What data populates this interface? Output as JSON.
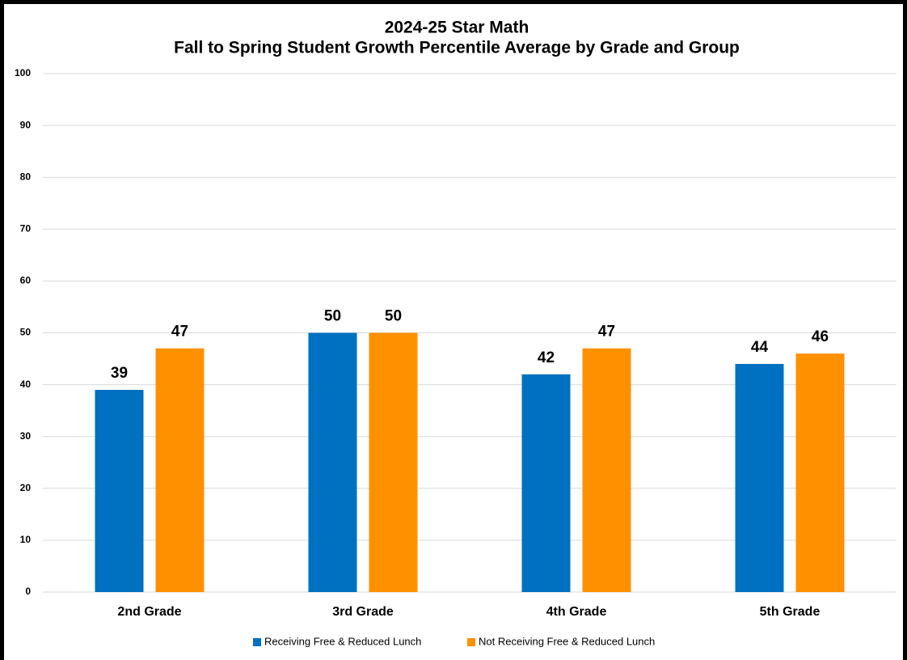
{
  "chart_data": {
    "type": "bar",
    "title": "2024-25 Star Math",
    "subtitle": "Fall to Spring Student Growth Percentile Average by Grade and Group",
    "categories": [
      "2nd Grade",
      "3rd Grade",
      "4th Grade",
      "5th Grade"
    ],
    "series": [
      {
        "name": "Receiving Free & Reduced Lunch",
        "color": "#0070C0",
        "values": [
          39,
          50,
          42,
          44
        ]
      },
      {
        "name": "Not Receiving Free & Reduced Lunch",
        "color": "#FF9000",
        "values": [
          47,
          50,
          47,
          46
        ]
      }
    ],
    "ylim": [
      0,
      100
    ],
    "yticks": [
      0,
      10,
      20,
      30,
      40,
      50,
      60,
      70,
      80,
      90,
      100
    ],
    "grid": true,
    "legend": "bottom"
  }
}
